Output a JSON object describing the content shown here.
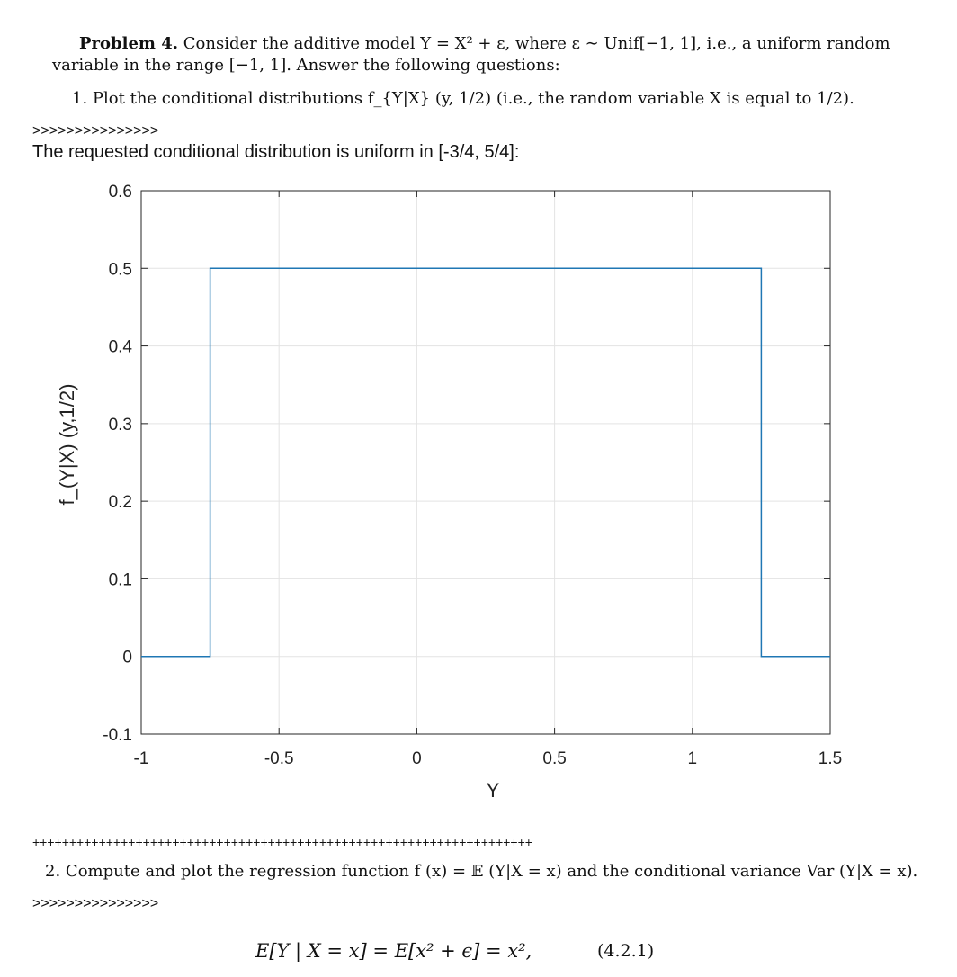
{
  "problem": {
    "heading": "Problem 4.",
    "statement_line1": "Consider the additive model Y = X² + ε, where ε ∼ Unif[−1, 1], i.e., a uniform random",
    "statement_line2": "variable in the range [−1, 1]. Answer the following questions:"
  },
  "questions": [
    {
      "number": "1.",
      "text": "Plot the conditional distributions f_{Y|X} (y, 1/2) (i.e., the random variable X is equal to 1/2)."
    },
    {
      "number": "2.",
      "text": "Compute and plot the regression function f (x) = 𝔼 (Y|X = x) and the conditional variance Var (Y|X = x)."
    }
  ],
  "answer1": {
    "arrows": ">>>>>>>>>>>>>>>",
    "text": "The requested conditional distribution is uniform in [-3/4, 5/4]:"
  },
  "separator": "++++++++++++++++++++++++++++++++++++++++++++++++++++++++++++++++++++",
  "answer2": {
    "arrows": ">>>>>>>>>>>>>>>",
    "equation": "E[Y | X = x] = E[x² + ϵ] = x²,",
    "equation_number": "(4.2.1)"
  },
  "chart_data": {
    "type": "line",
    "xlabel": "Y",
    "ylabel": "f_(Y|X) (y,1/2)",
    "xlim": [
      -1,
      1.5
    ],
    "ylim": [
      -0.1,
      0.6
    ],
    "xticks": [
      -1,
      -0.5,
      0,
      0.5,
      1,
      1.5
    ],
    "xtick_labels": [
      "-1",
      "-0.5",
      "0",
      "0.5",
      "1",
      "1.5"
    ],
    "yticks": [
      -0.1,
      0,
      0.1,
      0.2,
      0.3,
      0.4,
      0.5,
      0.6
    ],
    "ytick_labels": [
      "-0.1",
      "0",
      "0.1",
      "0.2",
      "0.3",
      "0.4",
      "0.5",
      "0.6"
    ],
    "grid": true,
    "series": [
      {
        "color": "#1f77b4",
        "x": [
          -1,
          -0.75,
          -0.75,
          1.25,
          1.25,
          1.5
        ],
        "y": [
          0,
          0,
          0.5,
          0.5,
          0,
          0
        ]
      }
    ]
  }
}
